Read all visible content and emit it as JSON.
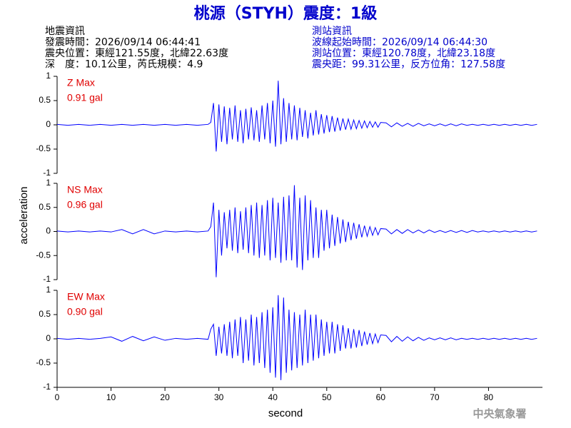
{
  "header": {
    "title": "桃源（STYH）震度：1級",
    "event_info": [
      "地震資訊",
      "發震時間：2026/09/14 06:44:41",
      "震央位置：東經121.55度，北緯22.63度",
      "深　度：10.1公里，芮氏規模：4.9"
    ],
    "station_info": [
      "測站資訊",
      "波線起始時間：2026/09/14 06:44:30",
      "測站位置：東經120.78度，北緯23.18度",
      "震央距：99.31公里，反方位角：127.58度"
    ],
    "watermark": "中央氣象署"
  },
  "y_axis_label": "acceleration",
  "x_axis_label": "second",
  "chart_data": [
    {
      "type": "line",
      "annotation": "Z Max",
      "max_label": "0.91 gal",
      "color": "#0000ff",
      "annotation_color": "#e00000",
      "xlim": [
        0,
        90
      ],
      "ylim": [
        -1,
        1
      ],
      "yticks": [
        1,
        0.5,
        0,
        -0.5,
        -1
      ],
      "x": [
        0,
        2,
        4,
        6,
        8,
        10,
        12,
        14,
        16,
        18,
        20,
        22,
        24,
        26,
        28,
        28.5,
        29,
        29.5,
        30,
        30.5,
        31,
        31.5,
        32,
        32.5,
        33,
        33.5,
        34,
        34.5,
        35,
        35.5,
        36,
        36.5,
        37,
        37.5,
        38,
        38.5,
        39,
        39.5,
        40,
        40.5,
        41,
        41.5,
        42,
        42.5,
        43,
        43.5,
        44,
        44.5,
        45,
        45.5,
        46,
        46.5,
        47,
        47.5,
        48,
        48.5,
        49,
        49.5,
        50,
        50.5,
        51,
        51.5,
        52,
        52.5,
        53,
        53.5,
        54,
        54.5,
        55,
        55.5,
        56,
        56.5,
        57,
        57.5,
        58,
        58.5,
        59,
        59.5,
        60,
        61,
        62,
        63,
        64,
        65,
        66,
        67,
        68,
        69,
        70,
        71,
        72,
        73,
        74,
        75,
        76,
        77,
        78,
        79,
        80,
        81,
        82,
        83,
        84,
        85,
        86,
        87,
        88,
        89
      ],
      "values": [
        0.01,
        -0.01,
        0.01,
        -0.01,
        0.01,
        -0.01,
        0.01,
        -0.01,
        0.01,
        -0.01,
        0.01,
        -0.01,
        0.01,
        -0.01,
        0.01,
        0.05,
        0.45,
        -0.55,
        0.42,
        -0.35,
        0.38,
        -0.4,
        0.35,
        -0.3,
        0.4,
        -0.35,
        0.3,
        -0.38,
        0.33,
        -0.3,
        0.36,
        -0.32,
        0.3,
        -0.35,
        0.4,
        -0.3,
        0.45,
        -0.38,
        0.5,
        -0.45,
        0.91,
        -0.4,
        0.55,
        -0.35,
        0.45,
        -0.3,
        0.4,
        -0.32,
        0.35,
        -0.25,
        0.3,
        -0.28,
        0.25,
        -0.22,
        0.3,
        -0.2,
        0.22,
        -0.18,
        0.2,
        -0.15,
        0.18,
        -0.14,
        0.15,
        -0.12,
        0.13,
        -0.1,
        0.12,
        -0.09,
        0.1,
        -0.08,
        0.09,
        -0.07,
        0.08,
        -0.06,
        0.07,
        -0.05,
        0.06,
        -0.05,
        0.05,
        0.04,
        -0.04,
        0.04,
        -0.03,
        0.03,
        -0.03,
        0.03,
        -0.02,
        0.02,
        -0.02,
        0.02,
        -0.02,
        0.02,
        -0.02,
        0.02,
        -0.01,
        0.01,
        -0.01,
        0.01,
        -0.01,
        0.01,
        -0.01,
        0.01,
        -0.01,
        0.01,
        -0.01,
        0.01,
        -0.01,
        0.01
      ]
    },
    {
      "type": "line",
      "annotation": "NS Max",
      "max_label": "0.96 gal",
      "color": "#0000ff",
      "annotation_color": "#e00000",
      "xlim": [
        0,
        90
      ],
      "ylim": [
        -1,
        1
      ],
      "yticks": [
        1,
        0.5,
        0,
        -0.5,
        -1
      ],
      "x": [
        0,
        2,
        4,
        6,
        8,
        10,
        12,
        14,
        16,
        18,
        20,
        22,
        24,
        26,
        28,
        28.5,
        29,
        29.5,
        30,
        30.5,
        31,
        31.5,
        32,
        32.5,
        33,
        33.5,
        34,
        34.5,
        35,
        35.5,
        36,
        36.5,
        37,
        37.5,
        38,
        38.5,
        39,
        39.5,
        40,
        40.5,
        41,
        41.5,
        42,
        42.5,
        43,
        43.5,
        44,
        44.5,
        45,
        45.5,
        46,
        46.5,
        47,
        47.5,
        48,
        48.5,
        49,
        49.5,
        50,
        50.5,
        51,
        51.5,
        52,
        52.5,
        53,
        53.5,
        54,
        54.5,
        55,
        55.5,
        56,
        56.5,
        57,
        57.5,
        58,
        58.5,
        59,
        59.5,
        60,
        61,
        62,
        63,
        64,
        65,
        66,
        67,
        68,
        69,
        70,
        71,
        72,
        73,
        74,
        75,
        76,
        77,
        78,
        79,
        80,
        81,
        82,
        83,
        84,
        85,
        86,
        87,
        88,
        89
      ],
      "values": [
        0.01,
        -0.01,
        0.01,
        -0.01,
        0.01,
        -0.01,
        0.04,
        -0.05,
        0.04,
        -0.05,
        0.01,
        -0.01,
        0.01,
        -0.01,
        0.01,
        0.1,
        0.6,
        -0.95,
        0.45,
        -0.5,
        0.4,
        -0.35,
        0.45,
        -0.4,
        0.5,
        -0.45,
        0.42,
        -0.38,
        0.5,
        -0.45,
        0.55,
        -0.5,
        0.6,
        -0.55,
        0.55,
        -0.5,
        0.65,
        -0.6,
        0.7,
        -0.55,
        0.6,
        -0.65,
        0.72,
        -0.6,
        0.75,
        -0.6,
        0.96,
        -0.75,
        0.7,
        -0.8,
        0.75,
        -0.6,
        0.65,
        -0.55,
        0.5,
        -0.55,
        0.45,
        -0.4,
        0.45,
        -0.35,
        0.35,
        -0.3,
        0.3,
        -0.25,
        0.25,
        -0.22,
        0.2,
        -0.18,
        0.18,
        -0.15,
        0.15,
        -0.12,
        0.12,
        -0.1,
        0.1,
        -0.08,
        0.08,
        -0.07,
        0.06,
        0.05,
        -0.05,
        0.04,
        -0.04,
        0.04,
        -0.03,
        0.03,
        -0.03,
        0.03,
        -0.02,
        0.02,
        -0.02,
        0.02,
        -0.02,
        0.02,
        -0.02,
        0.02,
        -0.01,
        0.01,
        -0.01,
        0.01,
        -0.01,
        0.01,
        -0.01,
        0.01,
        -0.01,
        0.01,
        -0.01,
        0.01
      ]
    },
    {
      "type": "line",
      "annotation": "EW Max",
      "max_label": "0.90 gal",
      "color": "#0000ff",
      "annotation_color": "#e00000",
      "xlim": [
        0,
        90
      ],
      "ylim": [
        -1,
        1
      ],
      "yticks": [
        1,
        0.5,
        0,
        -0.5,
        -1
      ],
      "xticks": [
        0,
        10,
        20,
        30,
        40,
        50,
        60,
        70,
        80
      ],
      "x": [
        0,
        2,
        4,
        6,
        8,
        10,
        12,
        14,
        16,
        18,
        20,
        22,
        24,
        26,
        28,
        28.5,
        29,
        29.5,
        30,
        30.5,
        31,
        31.5,
        32,
        32.5,
        33,
        33.5,
        34,
        34.5,
        35,
        35.5,
        36,
        36.5,
        37,
        37.5,
        38,
        38.5,
        39,
        39.5,
        40,
        40.5,
        41,
        41.5,
        42,
        42.5,
        43,
        43.5,
        44,
        44.5,
        45,
        45.5,
        46,
        46.5,
        47,
        47.5,
        48,
        48.5,
        49,
        49.5,
        50,
        50.5,
        51,
        51.5,
        52,
        52.5,
        53,
        53.5,
        54,
        54.5,
        55,
        55.5,
        56,
        56.5,
        57,
        57.5,
        58,
        58.5,
        59,
        59.5,
        60,
        61,
        62,
        63,
        64,
        65,
        66,
        67,
        68,
        69,
        70,
        71,
        72,
        73,
        74,
        75,
        76,
        77,
        78,
        79,
        80,
        81,
        82,
        83,
        84,
        85,
        86,
        87,
        88,
        89
      ],
      "values": [
        0.01,
        -0.01,
        0.01,
        -0.01,
        0.01,
        0.04,
        -0.05,
        0.05,
        -0.04,
        0.04,
        -0.03,
        0.01,
        -0.01,
        0.01,
        -0.01,
        0.2,
        0.3,
        -0.35,
        0.25,
        -0.3,
        0.3,
        -0.35,
        0.35,
        -0.4,
        0.4,
        -0.35,
        0.45,
        -0.5,
        0.4,
        -0.45,
        0.5,
        -0.55,
        0.45,
        -0.5,
        0.55,
        -0.6,
        0.6,
        -0.7,
        0.65,
        -0.8,
        0.9,
        -0.85,
        0.85,
        -0.7,
        0.6,
        -0.65,
        0.55,
        -0.6,
        0.5,
        -0.55,
        0.6,
        -0.5,
        0.5,
        -0.45,
        0.5,
        -0.4,
        0.4,
        -0.35,
        0.35,
        -0.3,
        0.35,
        -0.3,
        0.3,
        -0.25,
        0.28,
        -0.2,
        0.22,
        -0.2,
        0.2,
        -0.18,
        0.18,
        -0.15,
        0.15,
        -0.12,
        0.12,
        -0.1,
        0.1,
        -0.08,
        0.08,
        0.07,
        -0.06,
        0.05,
        -0.05,
        0.04,
        -0.04,
        0.03,
        -0.03,
        0.02,
        -0.02,
        0.02,
        -0.02,
        0.02,
        -0.02,
        0.01,
        -0.01,
        0.01,
        -0.01,
        0.01,
        -0.01,
        0.01,
        -0.01,
        0.01,
        -0.01,
        0.01,
        -0.01,
        0.01,
        -0.01,
        0.01
      ]
    }
  ]
}
